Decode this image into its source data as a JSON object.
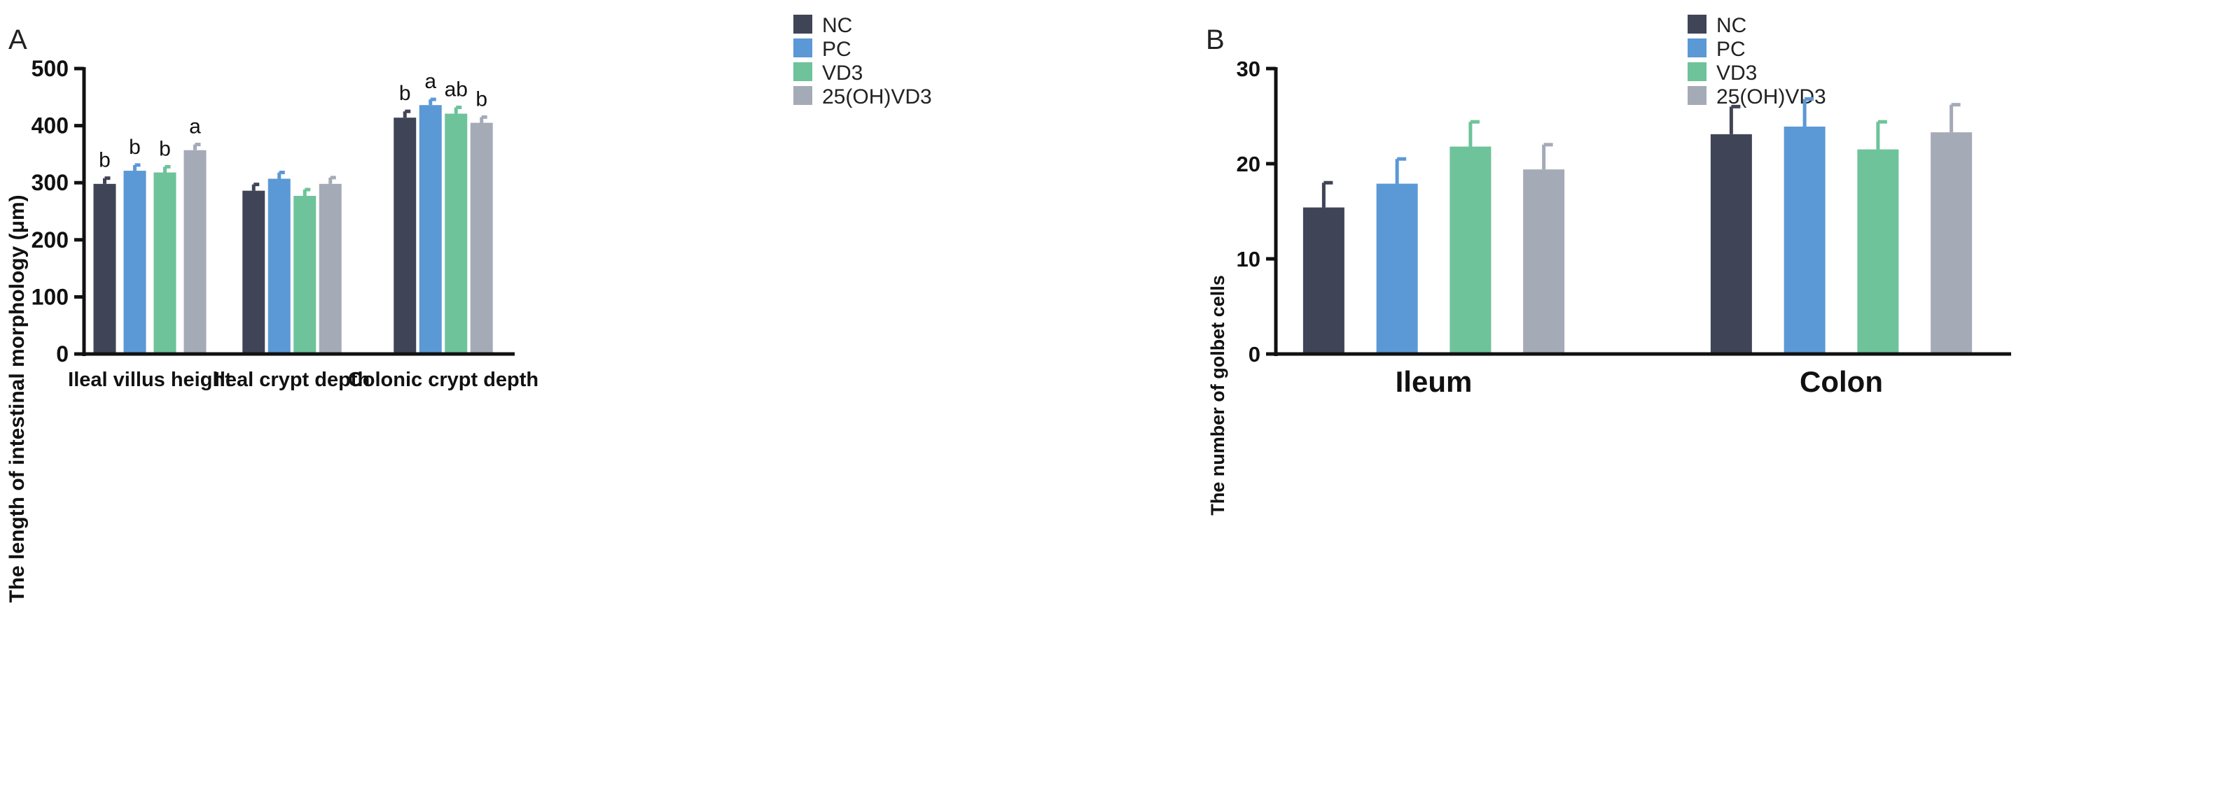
{
  "series_colors": {
    "NC": "#3f4556",
    "PC": "#5b98d6",
    "VD3": "#6ec39a",
    "25(OH)VD3": "#a5aab7"
  },
  "chart_data": [
    {
      "panel_label": "A",
      "type": "bar",
      "title": "",
      "xlabel": "",
      "ylabel": "The length of intestinal morphology (μm)",
      "ylim": [
        0,
        500
      ],
      "yticks": [
        0,
        100,
        200,
        300,
        400,
        500
      ],
      "categories": [
        "Ileal villus height",
        "Ileal crypt depth",
        "Colonic crypt depth"
      ],
      "legend_position": "top-right",
      "series": [
        {
          "name": "NC",
          "color": "#3f4556",
          "values": [
            298,
            286,
            414
          ],
          "errors": [
            10,
            11,
            11
          ],
          "labels": [
            "b",
            "",
            "b"
          ]
        },
        {
          "name": "PC",
          "color": "#5b98d6",
          "values": [
            321,
            307,
            436
          ],
          "errors": [
            10,
            11,
            10
          ],
          "labels": [
            "b",
            "",
            "a"
          ]
        },
        {
          "name": "VD3",
          "color": "#6ec39a",
          "values": [
            318,
            277,
            421
          ],
          "errors": [
            10,
            11,
            11
          ],
          "labels": [
            "b",
            "",
            "ab"
          ]
        },
        {
          "name": "25(OH)VD3",
          "color": "#a5aab7",
          "values": [
            357,
            298,
            405
          ],
          "errors": [
            10,
            11,
            10
          ],
          "labels": [
            "a",
            "",
            "b"
          ]
        }
      ]
    },
    {
      "panel_label": "B",
      "type": "bar",
      "title": "",
      "xlabel": "",
      "ylabel": "The number of golbet cells",
      "ylim": [
        0,
        30
      ],
      "yticks": [
        0,
        10,
        20,
        30
      ],
      "categories": [
        "Ileum",
        "Colon"
      ],
      "legend_position": "top-right",
      "series": [
        {
          "name": "NC",
          "color": "#3f4556",
          "values": [
            15.4,
            23.1
          ],
          "errors": [
            2.6,
            2.9
          ],
          "labels": [
            "",
            ""
          ]
        },
        {
          "name": "PC",
          "color": "#5b98d6",
          "values": [
            17.9,
            23.9
          ],
          "errors": [
            2.6,
            2.9
          ],
          "labels": [
            "",
            ""
          ]
        },
        {
          "name": "VD3",
          "color": "#6ec39a",
          "values": [
            21.8,
            21.5
          ],
          "errors": [
            2.6,
            2.9
          ],
          "labels": [
            "",
            ""
          ]
        },
        {
          "name": "25(OH)VD3",
          "color": "#a5aab7",
          "values": [
            19.4,
            23.3
          ],
          "errors": [
            2.6,
            2.9
          ],
          "labels": [
            "",
            ""
          ]
        }
      ]
    }
  ]
}
